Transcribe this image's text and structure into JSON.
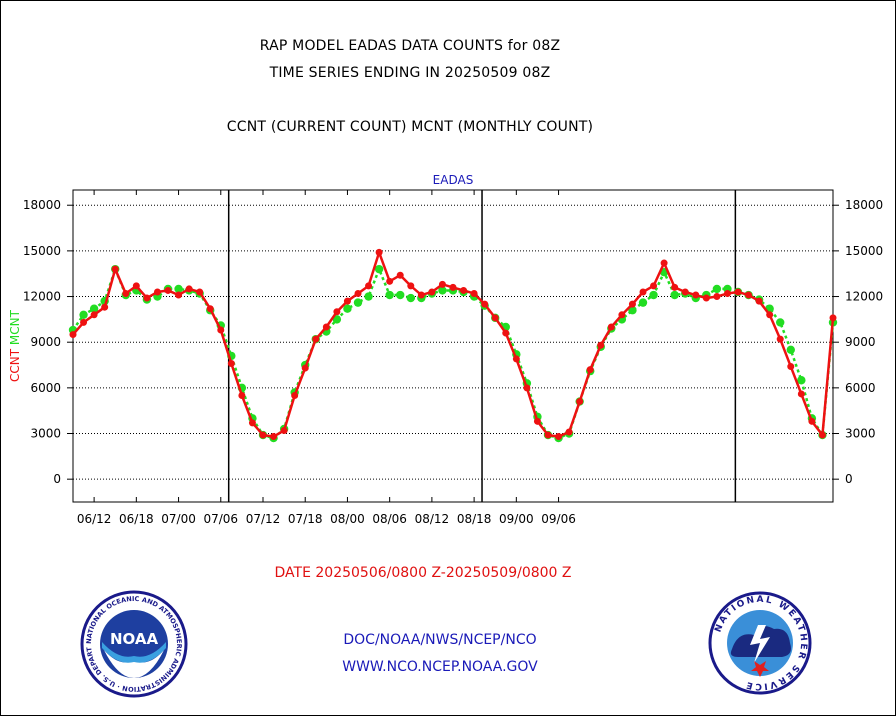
{
  "titles": {
    "line1": "RAP MODEL EADAS DATA COUNTS for 08Z",
    "line2": "TIME SERIES ENDING IN 20250509 08Z",
    "line3": "CCNT (CURRENT COUNT) MCNT (MONTHLY COUNT)"
  },
  "footer": {
    "date_range": "DATE 20250506/0800 Z-20250509/0800 Z",
    "link1": "DOC/NOAA/NWS/NCEP/NCO",
    "link2": "WWW.NCO.NCEP.NOAA.GOV"
  },
  "logos": {
    "noaa": "NOAA",
    "noaa_ring_text": "NATIONAL OCEANIC AND ATMOSPHERIC ADMINISTRATION · U.S. DEPARTMENT OF COMMERCE",
    "nws_ring_text": "NATIONAL WEATHER SERVICE"
  },
  "colors": {
    "ccnt": "#ee1111",
    "mcnt": "#22dd22",
    "title": "#1a1ab8"
  },
  "chart_data": {
    "type": "line",
    "title": "EADAS",
    "ylabel_left": [
      "CCNT",
      "MCNT"
    ],
    "ylim": [
      -1500,
      19000
    ],
    "yticks": [
      0,
      3000,
      6000,
      9000,
      12000,
      15000,
      18000
    ],
    "xlim": [
      0,
      72
    ],
    "x_tick_positions": [
      2,
      6,
      10,
      14,
      18,
      22,
      26,
      30,
      34,
      38,
      42,
      46
    ],
    "x_tick_labels": [
      "06/12",
      "06/18",
      "07/00",
      "07/06",
      "07/12",
      "07/18",
      "08/00",
      "08/06",
      "08/12",
      "08/18",
      "09/00",
      "09/06"
    ],
    "day_boundaries": [
      14.75,
      38.75,
      62.75
    ],
    "grid": true,
    "legend": "left axis label",
    "series": [
      {
        "name": "CCNT",
        "x": [
          0,
          1,
          2,
          3,
          4,
          5,
          6,
          7,
          8,
          9,
          10,
          11,
          12,
          13,
          14,
          15,
          16,
          17,
          18,
          19,
          20,
          21,
          22,
          23,
          24,
          25,
          26,
          27,
          28,
          29,
          30,
          31,
          32,
          33,
          34,
          35,
          36,
          37,
          38,
          39,
          40,
          41,
          42,
          43,
          44,
          45,
          46,
          47,
          48,
          49,
          50,
          51,
          52,
          53,
          54,
          55,
          56,
          57,
          58,
          59,
          60,
          61,
          62,
          63,
          64,
          65,
          66,
          67,
          68,
          69,
          70,
          71,
          72
        ],
        "values": [
          9500,
          10300,
          10800,
          11300,
          13800,
          12200,
          12700,
          11900,
          12300,
          12400,
          12100,
          12500,
          12300,
          11200,
          9800,
          7600,
          5500,
          3700,
          2900,
          2800,
          3200,
          5500,
          7300,
          9200,
          10000,
          11000,
          11700,
          12200,
          12700,
          14900,
          13000,
          13400,
          12700,
          12100,
          12300,
          12800,
          12600,
          12400,
          12200,
          11500,
          10600,
          9600,
          7900,
          6000,
          3800,
          2900,
          2800,
          3100,
          5100,
          7200,
          8800,
          10000,
          10800,
          11500,
          12300,
          12700,
          14200,
          12600,
          12300,
          12100,
          11900,
          12000,
          12200,
          12300,
          12100,
          11700,
          10800,
          9200,
          7400,
          5600,
          3800,
          2900,
          10600
        ]
      },
      {
        "name": "MCNT",
        "x": [
          0,
          1,
          2,
          3,
          4,
          5,
          6,
          7,
          8,
          9,
          10,
          11,
          12,
          13,
          14,
          15,
          16,
          17,
          18,
          19,
          20,
          21,
          22,
          23,
          24,
          25,
          26,
          27,
          28,
          29,
          30,
          31,
          32,
          33,
          34,
          35,
          36,
          37,
          38,
          39,
          40,
          41,
          42,
          43,
          44,
          45,
          46,
          47,
          48,
          49,
          50,
          51,
          52,
          53,
          54,
          55,
          56,
          57,
          58,
          59,
          60,
          61,
          62,
          63,
          64,
          65,
          66,
          67,
          68,
          69,
          70,
          71,
          72
        ],
        "values": [
          9800,
          10800,
          11200,
          11700,
          13800,
          12100,
          12400,
          11800,
          12000,
          12500,
          12500,
          12400,
          12200,
          11100,
          10100,
          8100,
          6000,
          4000,
          2900,
          2700,
          3300,
          5700,
          7500,
          9200,
          9700,
          10500,
          11200,
          11600,
          12000,
          13800,
          12100,
          12100,
          11900,
          11900,
          12200,
          12400,
          12400,
          12300,
          12000,
          11400,
          10600,
          10000,
          8200,
          6300,
          4100,
          2900,
          2700,
          3000,
          5100,
          7100,
          8700,
          9900,
          10500,
          11100,
          11600,
          12100,
          13600,
          12100,
          12200,
          11900,
          12100,
          12500,
          12500,
          12300,
          12100,
          11800,
          11200,
          10300,
          8500,
          6500,
          4000,
          2900,
          10300
        ]
      }
    ]
  }
}
